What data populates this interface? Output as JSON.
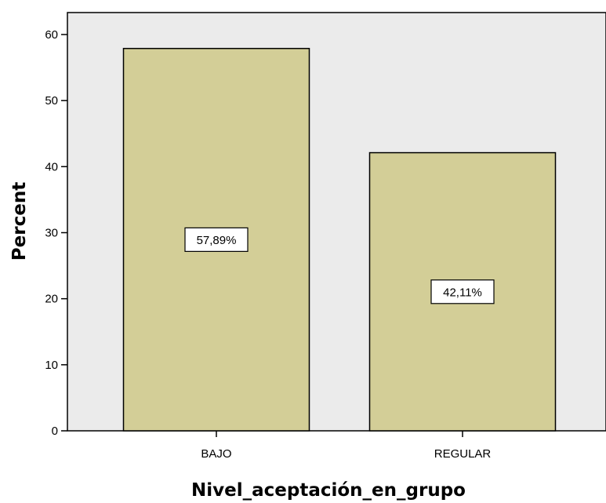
{
  "chart_data": {
    "type": "bar",
    "categories": [
      "BAJO",
      "REGULAR"
    ],
    "values": [
      57.89,
      42.11
    ],
    "data_labels": [
      "57,89%",
      "42,11%"
    ],
    "title": "",
    "xlabel": "Nivel_aceptación_en_grupo",
    "ylabel": "Percent",
    "ylim": [
      0,
      60
    ],
    "yticks": [
      "0",
      "10",
      "20",
      "30",
      "40",
      "50",
      "60"
    ],
    "grid": false,
    "legend": "none",
    "colors": {
      "plot_background": "#ebebeb",
      "bar_fill": "#d3ce97",
      "bar_stroke": "#000000",
      "label_box": "#ffffff"
    }
  }
}
